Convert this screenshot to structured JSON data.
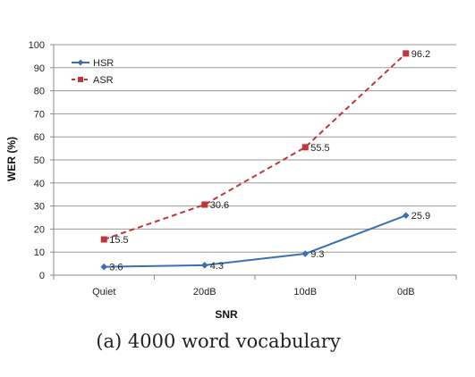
{
  "caption": "(a) 4000 word vocabulary",
  "chart_data": {
    "type": "line",
    "title": "",
    "xlabel": "SNR",
    "ylabel": "WER (%)",
    "categories": [
      "Quiet",
      "20dB",
      "10dB",
      "0dB"
    ],
    "ylim": [
      0,
      100
    ],
    "yticks": [
      "0",
      "10",
      "20",
      "30",
      "40",
      "50",
      "60",
      "70",
      "80",
      "90",
      "100"
    ],
    "grid": true,
    "legend_position": "top-left",
    "series": [
      {
        "name": "HSR",
        "values": [
          3.6,
          4.3,
          9.3,
          25.9
        ],
        "labels": [
          "3.6",
          "4.3",
          "9.3",
          "25.9"
        ],
        "color": "#3a6fb5",
        "marker": "diamond",
        "line_style": "solid"
      },
      {
        "name": "ASR",
        "values": [
          15.5,
          30.6,
          55.5,
          96.2
        ],
        "labels": [
          "15.5",
          "30.6",
          "55.5",
          "96.2"
        ],
        "color": "#c0353a",
        "marker": "square",
        "line_style": "dashed"
      }
    ]
  }
}
